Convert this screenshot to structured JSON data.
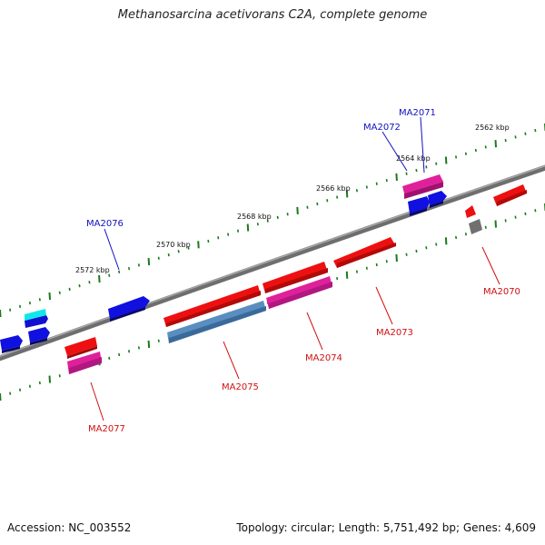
{
  "title": "Methanosarcina acetivorans C2A, complete genome",
  "footer": {
    "accession": "Accession: NC_003552",
    "summary": "Topology: circular; Length: 5,751,492 bp; Genes: 4,609"
  },
  "colors": {
    "backbone": "#808080",
    "tick": "#1a7a1a",
    "forward_label": "#1010c0",
    "reverse_label": "#d01010"
  },
  "kbp_labels": [
    "2562 kbp",
    "2564 kbp",
    "2566 kbp",
    "2568 kbp",
    "2570 kbp",
    "2572 kbp"
  ],
  "gene_labels": {
    "forward": [
      "MA2071",
      "MA2072",
      "MA2076"
    ],
    "reverse": [
      "MA2070",
      "MA2073",
      "MA2074",
      "MA2075",
      "MA2077"
    ]
  }
}
